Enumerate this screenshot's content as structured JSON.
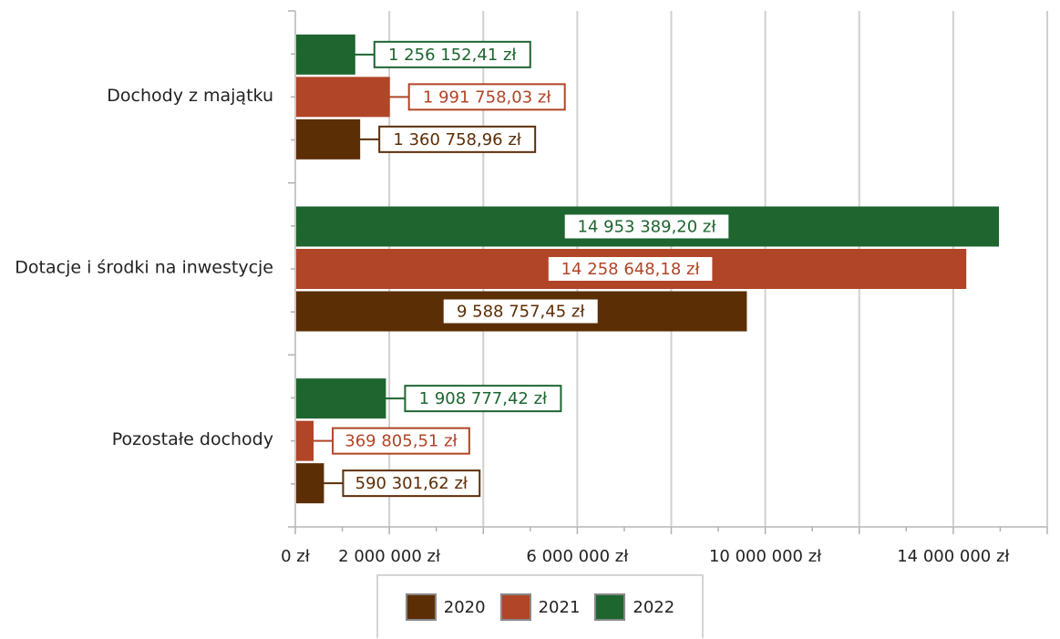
{
  "chart_data": {
    "type": "bar",
    "orientation": "horizontal",
    "categories": [
      "Dochody z majątku",
      "Dotacje i środki na inwestycje",
      "Pozostałe dochody"
    ],
    "series": [
      {
        "name": "2020",
        "color": "#5c2e06",
        "values": [
          1360758.96,
          9588757.45,
          590301.62
        ],
        "labels": [
          "1 360 758,96 zł",
          "9 588 757,45 zł",
          "590 301,62 zł"
        ]
      },
      {
        "name": "2021",
        "color": "#b14527",
        "values": [
          1991758.03,
          14258648.18,
          369805.51
        ],
        "labels": [
          "1 991 758,03 zł",
          "14 258 648,18 zł",
          "369 805,51 zł"
        ]
      },
      {
        "name": "2022",
        "color": "#1e6530",
        "values": [
          1256152.41,
          14953389.2,
          1908777.42
        ],
        "labels": [
          "1 256 152,41 zł",
          "14 953 389,20 zł",
          "1 908 777,42 zł"
        ]
      }
    ],
    "xlim": [
      0,
      16000000
    ],
    "x_gridlines": [
      0,
      2000000,
      4000000,
      6000000,
      8000000,
      10000000,
      12000000,
      14000000,
      16000000
    ],
    "x_tick_labels": [
      {
        "value": 0,
        "label": "0 zł"
      },
      {
        "value": 2000000,
        "label": "2 000 000 zł"
      },
      {
        "value": 6000000,
        "label": "6 000 000 zł"
      },
      {
        "value": 10000000,
        "label": "10 000 000 zł"
      },
      {
        "value": 14000000,
        "label": "14 000 000 zł"
      }
    ],
    "grid": true,
    "legend_position": "bottom"
  }
}
